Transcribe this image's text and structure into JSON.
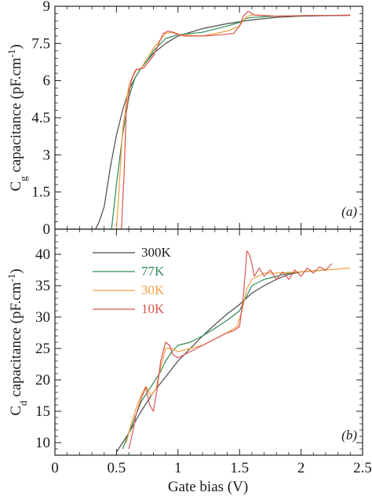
{
  "x_axis": {
    "label": "Gate bias (V)",
    "ticks": [
      "0",
      "0.5",
      "1",
      "1.5",
      "2",
      "2.5"
    ],
    "range": [
      0,
      2.5
    ]
  },
  "colors": {
    "300K": "#4a4a4a",
    "77K": "#2e8b57",
    "30K": "#f0a040",
    "10K": "#d9534f"
  },
  "chart_data": [
    {
      "type": "line",
      "panel_label": "(a)",
      "ylabel_main": "C",
      "ylabel_sub": "g",
      "ylabel_rest": " capacitance (pF.cm",
      "ylabel_sup": "-1",
      "ylabel_end": ")",
      "xlim": [
        0,
        2.5
      ],
      "ylim": [
        0,
        9
      ],
      "yticks": [
        "0",
        "1.5",
        "3",
        "4.5",
        "6",
        "7.5",
        "9"
      ],
      "series": [
        {
          "name": "300K",
          "color": "#4a4a4a",
          "x": [
            0.33,
            0.36,
            0.4,
            0.45,
            0.5,
            0.55,
            0.6,
            0.65,
            0.7,
            0.8,
            0.9,
            1.0,
            1.2,
            1.4,
            1.6,
            1.8,
            2.0,
            2.2,
            2.4
          ],
          "y": [
            0.0,
            0.3,
            0.9,
            2.5,
            3.8,
            4.8,
            5.6,
            6.1,
            6.5,
            7.1,
            7.5,
            7.8,
            8.1,
            8.3,
            8.45,
            8.55,
            8.6,
            8.62,
            8.63
          ]
        },
        {
          "name": "77K",
          "color": "#2e8b57",
          "x": [
            0.46,
            0.5,
            0.55,
            0.6,
            0.65,
            0.7,
            0.75,
            0.8,
            0.9,
            1.0,
            1.2,
            1.4,
            1.5,
            1.55,
            1.6,
            1.8,
            2.0,
            2.2,
            2.4
          ],
          "y": [
            0.0,
            1.8,
            3.8,
            5.3,
            6.1,
            6.5,
            6.8,
            7.2,
            7.7,
            7.85,
            7.95,
            8.2,
            8.35,
            8.5,
            8.55,
            8.6,
            8.62,
            8.63,
            8.64
          ]
        },
        {
          "name": "30K",
          "color": "#f0a040",
          "x": [
            0.5,
            0.52,
            0.55,
            0.6,
            0.65,
            0.7,
            0.8,
            0.9,
            0.95,
            1.0,
            1.2,
            1.4,
            1.5,
            1.55,
            1.6,
            1.8,
            2.0,
            2.2,
            2.4
          ],
          "y": [
            0.0,
            1.5,
            4.0,
            5.8,
            6.4,
            6.5,
            7.3,
            7.9,
            7.95,
            7.85,
            7.8,
            8.0,
            8.2,
            8.55,
            8.65,
            8.6,
            8.62,
            8.63,
            8.64
          ]
        },
        {
          "name": "10K",
          "color": "#d9534f",
          "x": [
            0.54,
            0.56,
            0.58,
            0.62,
            0.66,
            0.72,
            0.8,
            0.88,
            0.92,
            0.96,
            1.05,
            1.2,
            1.35,
            1.45,
            1.5,
            1.53,
            1.57,
            1.62,
            1.8,
            2.0,
            2.2,
            2.4
          ],
          "y": [
            0.0,
            2.0,
            4.8,
            6.0,
            6.45,
            6.5,
            7.0,
            7.9,
            8.0,
            7.95,
            7.8,
            7.8,
            7.85,
            7.9,
            8.2,
            8.6,
            8.8,
            8.65,
            8.6,
            8.62,
            8.63,
            8.64
          ]
        }
      ]
    },
    {
      "type": "line",
      "panel_label": "(b)",
      "ylabel_main": "C",
      "ylabel_sub": "d",
      "ylabel_rest": " capacitance (pF.cm",
      "ylabel_sup": "-1",
      "ylabel_end": ")",
      "xlim": [
        0,
        2.5
      ],
      "ylim": [
        8,
        44
      ],
      "yticks": [
        "10",
        "15",
        "20",
        "25",
        "30",
        "35",
        "40"
      ],
      "legend": {
        "position": "top-left"
      },
      "series": [
        {
          "name": "300K",
          "color": "#4a4a4a",
          "x": [
            0.5,
            0.6,
            0.7,
            0.8,
            0.9,
            1.0,
            1.1,
            1.2,
            1.3,
            1.4,
            1.5,
            1.6,
            1.7,
            1.8,
            1.9,
            2.0,
            2.2
          ],
          "y": [
            8.5,
            11.5,
            15.0,
            18.0,
            20.5,
            23.0,
            25.0,
            27.0,
            28.8,
            30.5,
            32.0,
            33.8,
            35.0,
            36.0,
            36.8,
            37.2,
            37.5
          ]
        },
        {
          "name": "77K",
          "color": "#2e8b57",
          "x": [
            0.55,
            0.6,
            0.65,
            0.7,
            0.75,
            0.8,
            0.85,
            0.9,
            0.95,
            1.0,
            1.1,
            1.2,
            1.3,
            1.4,
            1.5,
            1.55,
            1.6,
            1.7,
            1.8,
            1.9,
            2.0,
            2.2
          ],
          "y": [
            9.0,
            11.5,
            14.0,
            16.5,
            18.0,
            19.5,
            21.0,
            23.0,
            24.5,
            25.5,
            26.0,
            27.0,
            28.2,
            29.5,
            31.0,
            33.0,
            35.0,
            36.0,
            36.5,
            37.0,
            37.2,
            37.5
          ]
        },
        {
          "name": "30K",
          "color": "#f0a040",
          "x": [
            0.58,
            0.62,
            0.66,
            0.7,
            0.74,
            0.78,
            0.82,
            0.86,
            0.9,
            0.95,
            1.0,
            1.1,
            1.2,
            1.3,
            1.4,
            1.48,
            1.52,
            1.56,
            1.6,
            1.7,
            1.8,
            2.0,
            2.2,
            2.4
          ],
          "y": [
            10.0,
            13.0,
            15.5,
            17.5,
            19.0,
            17.5,
            18.5,
            22.0,
            25.0,
            25.0,
            24.5,
            25.0,
            25.5,
            26.5,
            27.5,
            28.5,
            31.0,
            34.5,
            36.0,
            37.0,
            37.0,
            37.2,
            37.5,
            37.8
          ]
        },
        {
          "name": "10K",
          "color": "#d9534f",
          "x": [
            0.6,
            0.63,
            0.66,
            0.7,
            0.74,
            0.77,
            0.8,
            0.83,
            0.86,
            0.9,
            0.93,
            0.96,
            1.0,
            1.05,
            1.1,
            1.2,
            1.3,
            1.4,
            1.45,
            1.5,
            1.53,
            1.56,
            1.58,
            1.6,
            1.62,
            1.66,
            1.7,
            1.75,
            1.8,
            1.85,
            1.9,
            1.95,
            2.0,
            2.05,
            2.1,
            2.15,
            2.2,
            2.25
          ],
          "y": [
            9.0,
            11.5,
            14.5,
            17.0,
            18.8,
            16.0,
            15.0,
            18.5,
            23.0,
            26.0,
            25.5,
            24.0,
            23.5,
            24.0,
            24.5,
            25.5,
            26.5,
            27.5,
            27.8,
            28.5,
            33.0,
            40.5,
            40.0,
            38.5,
            36.5,
            37.8,
            36.5,
            37.5,
            36.0,
            37.2,
            36.0,
            37.5,
            36.5,
            37.8,
            37.0,
            38.0,
            37.5,
            38.5
          ]
        }
      ]
    }
  ]
}
